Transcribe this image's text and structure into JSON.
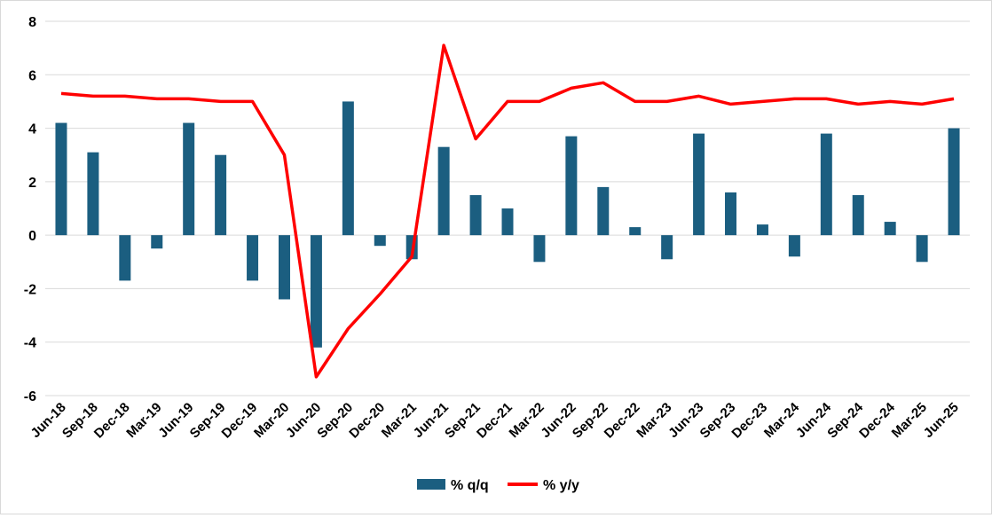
{
  "chart_data": {
    "type": "bar",
    "categories": [
      "Jun-18",
      "Sep-18",
      "Dec-18",
      "Mar-19",
      "Jun-19",
      "Sep-19",
      "Dec-19",
      "Mar-20",
      "Jun-20",
      "Sep-20",
      "Dec-20",
      "Mar-21",
      "Jun-21",
      "Sep-21",
      "Dec-21",
      "Mar-22",
      "Jun-22",
      "Sep-22",
      "Dec-22",
      "Mar-23",
      "Jun-23",
      "Sep-23",
      "Dec-23",
      "Mar-24",
      "Jun-24",
      "Sep-24",
      "Dec-24",
      "Mar-25",
      "Jun-25"
    ],
    "series": [
      {
        "name": "% q/q",
        "type": "bar",
        "color": "#1b5e80",
        "values": [
          4.2,
          3.1,
          -1.7,
          -0.5,
          4.2,
          3.0,
          -1.7,
          -2.4,
          -4.2,
          5.0,
          -0.4,
          -0.9,
          3.3,
          1.5,
          1.0,
          -1.0,
          3.7,
          1.8,
          0.3,
          -0.9,
          3.8,
          1.6,
          0.4,
          -0.8,
          3.8,
          1.5,
          0.5,
          -1.0,
          4.0
        ]
      },
      {
        "name": "% y/y",
        "type": "line",
        "color": "#ff0000",
        "values": [
          5.3,
          5.2,
          5.2,
          5.1,
          5.1,
          5.0,
          5.0,
          3.0,
          -5.3,
          -3.5,
          -2.2,
          -0.8,
          7.1,
          3.6,
          5.0,
          5.0,
          5.5,
          5.7,
          5.0,
          5.0,
          5.2,
          4.9,
          5.0,
          5.1,
          5.1,
          4.9,
          5.0,
          4.9,
          5.1
        ]
      }
    ],
    "ylim": [
      -6,
      8
    ],
    "yticks": [
      -6,
      -4,
      -2,
      0,
      2,
      4,
      6,
      8
    ],
    "grid": true,
    "legend_position": "bottom",
    "title": "",
    "xlabel": "",
    "ylabel": ""
  },
  "legend": {
    "bar_label": "% q/q",
    "line_label": "% y/y"
  }
}
